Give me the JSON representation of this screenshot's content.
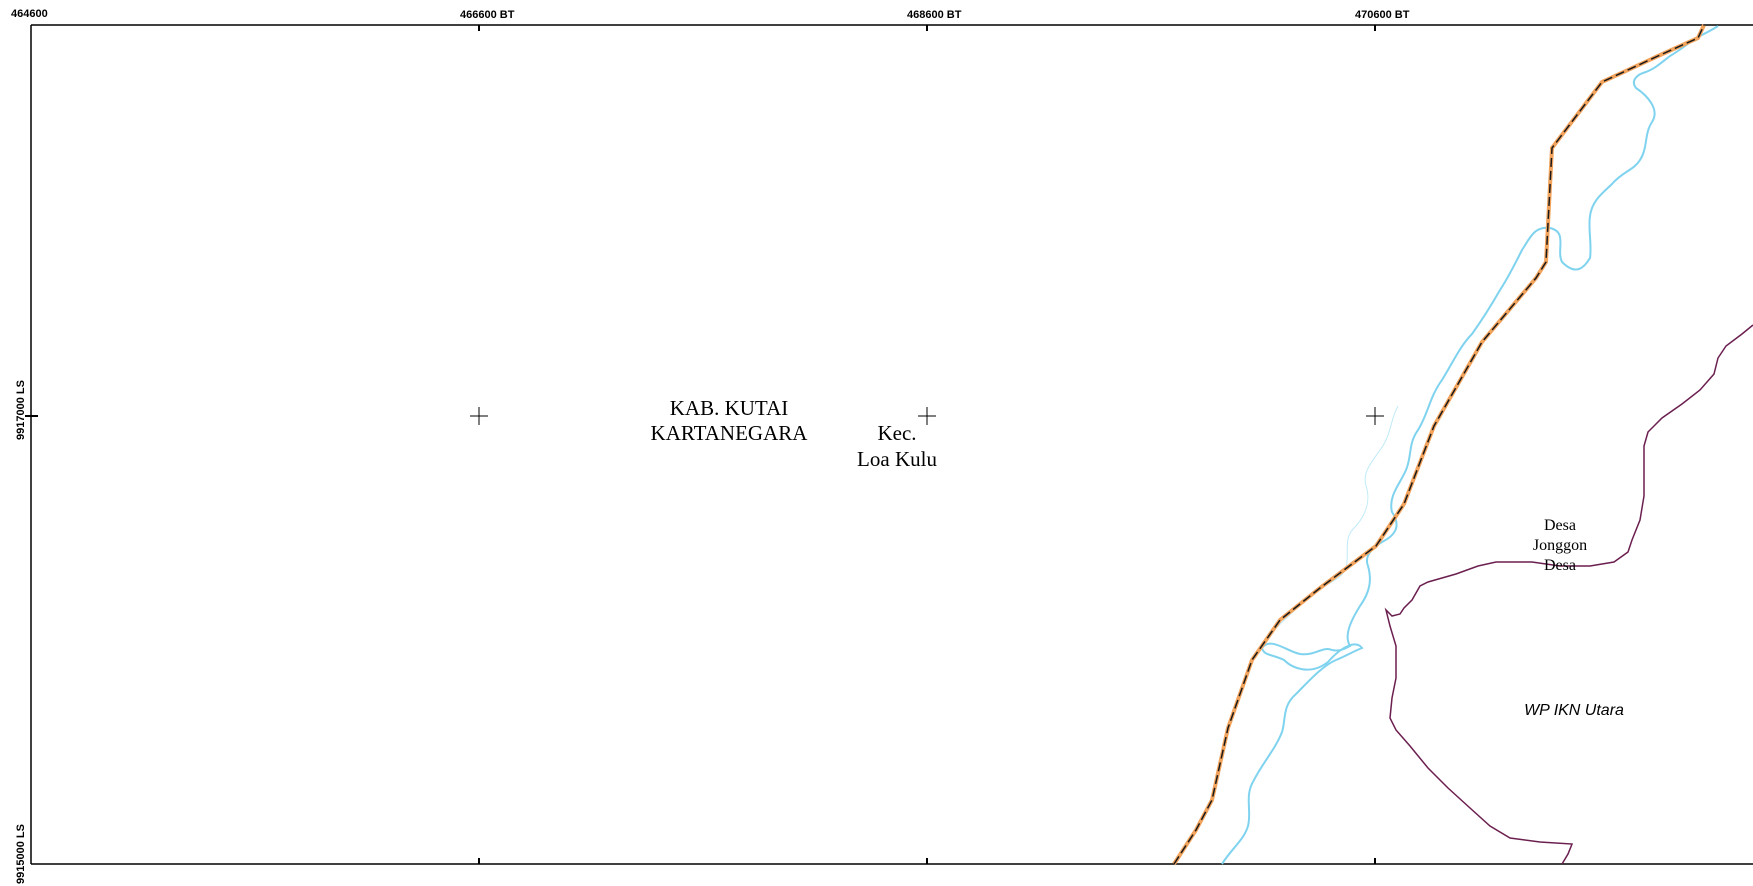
{
  "map": {
    "easting_ticks": [
      "464600",
      "466600 BT",
      "468600 BT",
      "470600 BT"
    ],
    "northing_ticks": [
      "9917000 LS",
      "9915000 LS"
    ],
    "labels": {
      "regency": [
        "KAB. KUTAI",
        "KARTANEGARA"
      ],
      "district": [
        "Kec.",
        "Loa Kulu"
      ],
      "village": [
        "Desa",
        "Jonggon",
        "Desa"
      ],
      "zone": "WP IKN Utara"
    },
    "colors": {
      "frame": "#000000",
      "river": "#7fd3ef",
      "boundary_casing": "#f2a35c",
      "boundary_dash": "#1a1a1a",
      "village_boundary": "#6b1f4f"
    }
  }
}
